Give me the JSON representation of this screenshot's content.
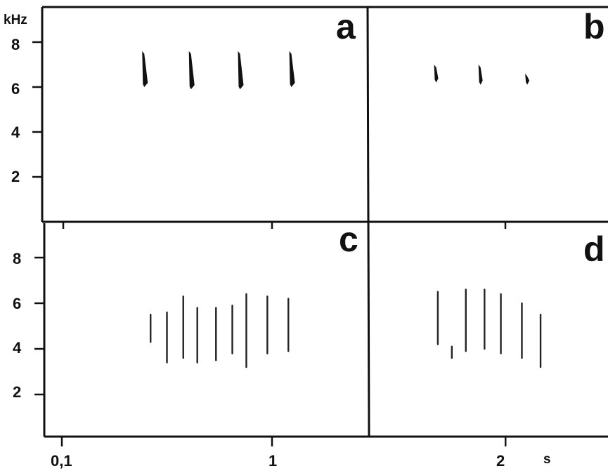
{
  "chart_data": {
    "type": "scatter",
    "title": "",
    "panels": [
      {
        "label": "a",
        "ylabel": "kHz",
        "y_ticks": [
          "8",
          "6",
          "4",
          "2"
        ],
        "ylim": [
          0,
          9.5
        ],
        "notes": [
          {
            "t": 0.45,
            "f_low": 6.0,
            "f_high": 7.6
          },
          {
            "t": 0.65,
            "f_low": 5.9,
            "f_high": 7.6
          },
          {
            "t": 0.86,
            "f_low": 5.9,
            "f_high": 7.6
          },
          {
            "t": 1.08,
            "f_low": 6.0,
            "f_high": 7.6
          }
        ]
      },
      {
        "label": "b",
        "ylim": [
          0,
          9.5
        ],
        "notes": [
          {
            "t": 1.7,
            "f_low": 6.2,
            "f_high": 7.0
          },
          {
            "t": 1.89,
            "f_low": 6.1,
            "f_high": 7.0
          },
          {
            "t": 2.09,
            "f_low": 6.1,
            "f_high": 6.6
          }
        ]
      },
      {
        "label": "c",
        "y_ticks": [
          "8",
          "6",
          "4",
          "2"
        ],
        "ylim": [
          0,
          9.5
        ],
        "notes": [
          {
            "t": 0.48,
            "f_low": 4.3,
            "f_high": 5.5
          },
          {
            "t": 0.55,
            "f_low": 3.4,
            "f_high": 5.6
          },
          {
            "t": 0.62,
            "f_low": 3.6,
            "f_high": 6.3
          },
          {
            "t": 0.68,
            "f_low": 3.4,
            "f_high": 5.8
          },
          {
            "t": 0.76,
            "f_low": 3.5,
            "f_high": 5.8
          },
          {
            "t": 0.83,
            "f_low": 3.8,
            "f_high": 5.9
          },
          {
            "t": 0.89,
            "f_low": 3.2,
            "f_high": 6.4
          },
          {
            "t": 0.98,
            "f_low": 3.8,
            "f_high": 6.3
          },
          {
            "t": 1.07,
            "f_low": 3.9,
            "f_high": 6.2
          }
        ]
      },
      {
        "label": "d",
        "ylim": [
          0,
          9.5
        ],
        "notes": [
          {
            "t": 1.71,
            "f_low": 4.2,
            "f_high": 6.5
          },
          {
            "t": 1.77,
            "f_low": 3.6,
            "f_high": 4.1
          },
          {
            "t": 1.83,
            "f_low": 3.9,
            "f_high": 6.6
          },
          {
            "t": 1.91,
            "f_low": 4.0,
            "f_high": 6.6
          },
          {
            "t": 1.98,
            "f_low": 3.8,
            "f_high": 6.4
          },
          {
            "t": 2.07,
            "f_low": 3.6,
            "f_high": 6.0
          },
          {
            "t": 2.15,
            "f_low": 3.2,
            "f_high": 5.5
          }
        ]
      }
    ],
    "x_ticks": [
      {
        "value": 0.1,
        "label": "0,1"
      },
      {
        "value": 1,
        "label": "1"
      },
      {
        "value": 2,
        "label": "2"
      }
    ],
    "xlabel": "s",
    "xlim": [
      0,
      2.35
    ],
    "grid": false,
    "legend": "none",
    "colors": {
      "ink": "#111111",
      "background": "#ffffff"
    }
  }
}
